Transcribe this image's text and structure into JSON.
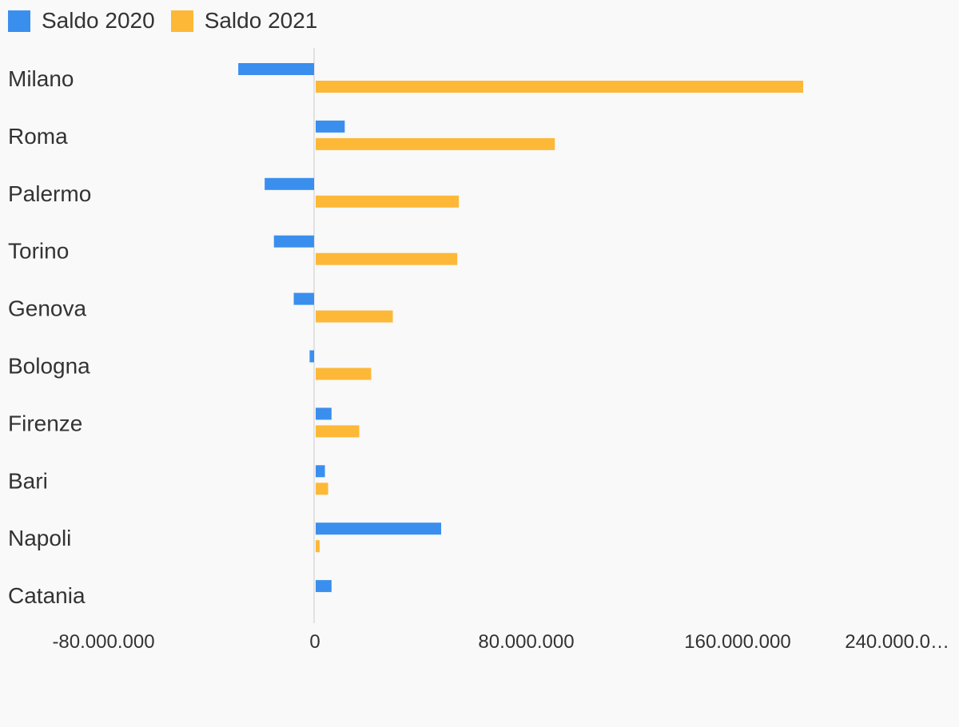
{
  "chart_data": {
    "type": "bar",
    "orientation": "horizontal",
    "categories": [
      "Milano",
      "Roma",
      "Palermo",
      "Torino",
      "Genova",
      "Bologna",
      "Firenze",
      "Bari",
      "Napoli",
      "Catania"
    ],
    "series": [
      {
        "name": "Saldo 2020",
        "color": "#3a8fee",
        "values": [
          -29000000,
          11000000,
          -19000000,
          -15500000,
          -8000000,
          -2000000,
          6000000,
          3500000,
          47500000,
          6000000
        ]
      },
      {
        "name": "Saldo 2021",
        "color": "#fdb838",
        "values": [
          184500000,
          90500000,
          54200000,
          53600000,
          29200000,
          21000000,
          16500000,
          4700000,
          1500000,
          0
        ]
      }
    ],
    "x_ticks": [
      "-80.000.000",
      "0",
      "80.000.000",
      "160.000.000",
      "240.000.0…"
    ],
    "x_tick_values": [
      -80000000,
      0,
      80000000,
      160000000,
      240000000
    ],
    "xlim": [
      -80000000,
      240000000
    ],
    "legend_position": "top-left",
    "grid": false
  }
}
